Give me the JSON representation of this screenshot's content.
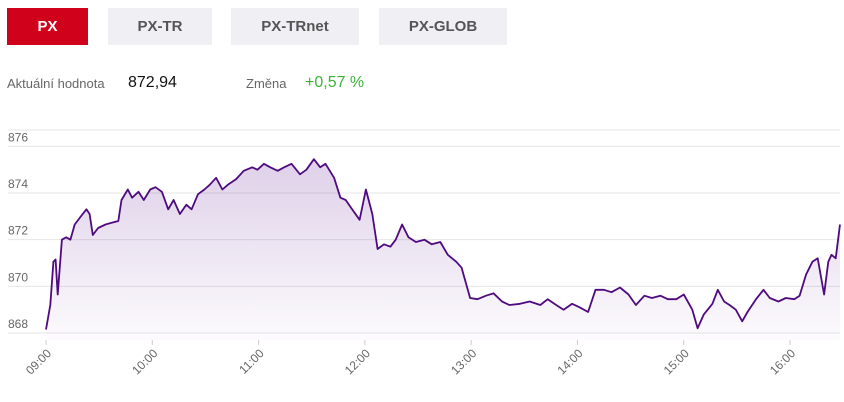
{
  "tabs": [
    "PX",
    "PX-TR",
    "PX-TRnet",
    "PX-GLOB"
  ],
  "active_tab": 0,
  "info": {
    "value_label": "Aktuální hodnota",
    "value": "872,94",
    "change_label": "Změna",
    "change": "+0,57 %"
  },
  "chart_data": {
    "type": "line",
    "xlim": [
      9,
      16.47
    ],
    "xticks": [
      {
        "value": 9,
        "label": "09:00"
      },
      {
        "value": 10,
        "label": "10:00"
      },
      {
        "value": 11,
        "label": "11:00"
      },
      {
        "value": 12,
        "label": "12:00"
      },
      {
        "value": 13,
        "label": "13:00"
      },
      {
        "value": 14,
        "label": "14:00"
      },
      {
        "value": 15,
        "label": "15:00"
      },
      {
        "value": 16,
        "label": "16:00"
      }
    ],
    "ylim": [
      867.7,
      876.7
    ],
    "yticks": [
      868,
      870,
      872,
      874,
      876
    ],
    "grid": true,
    "series": [
      {
        "color": "#4e0a7e",
        "x": [
          9.0,
          9.04,
          9.07,
          9.09,
          9.11,
          9.15,
          9.19,
          9.23,
          9.27,
          9.32,
          9.38,
          9.41,
          9.44,
          9.49,
          9.56,
          9.6,
          9.68,
          9.71,
          9.77,
          9.81,
          9.87,
          9.92,
          9.98,
          10.03,
          10.09,
          10.15,
          10.2,
          10.26,
          10.32,
          10.37,
          10.43,
          10.49,
          10.54,
          10.6,
          10.66,
          10.71,
          10.79,
          10.86,
          10.94,
          10.99,
          11.05,
          11.11,
          11.18,
          11.24,
          11.31,
          11.39,
          11.45,
          11.52,
          11.58,
          11.63,
          11.71,
          11.77,
          11.82,
          11.88,
          11.95,
          12.01,
          12.07,
          12.12,
          12.18,
          12.24,
          12.29,
          12.35,
          12.41,
          12.48,
          12.56,
          12.63,
          12.71,
          12.78,
          12.86,
          12.91,
          12.99,
          13.06,
          13.14,
          13.21,
          13.29,
          13.36,
          13.46,
          13.55,
          13.65,
          13.72,
          13.8,
          13.87,
          13.95,
          14.02,
          14.1,
          14.17,
          14.25,
          14.32,
          14.4,
          14.48,
          14.55,
          14.63,
          14.7,
          14.78,
          14.85,
          14.93,
          15.0,
          15.08,
          15.13,
          15.19,
          15.27,
          15.32,
          15.38,
          15.43,
          15.49,
          15.55,
          15.6,
          15.68,
          15.75,
          15.81,
          15.89,
          15.96,
          16.04,
          16.09,
          16.15,
          16.21,
          16.26,
          16.32,
          16.36,
          16.39,
          16.43,
          16.47
        ],
        "values": [
          868.15,
          869.2,
          871.05,
          871.15,
          869.65,
          872.0,
          872.1,
          872.0,
          872.65,
          872.95,
          873.3,
          873.1,
          872.2,
          872.5,
          872.65,
          872.7,
          872.8,
          873.7,
          874.15,
          873.8,
          874.05,
          873.7,
          874.15,
          874.25,
          874.05,
          873.3,
          873.7,
          873.1,
          873.5,
          873.3,
          873.95,
          874.15,
          874.35,
          874.65,
          874.15,
          874.35,
          874.6,
          874.95,
          875.1,
          875.0,
          875.25,
          875.1,
          874.95,
          875.1,
          875.25,
          874.8,
          875.0,
          875.45,
          875.1,
          875.25,
          874.65,
          873.8,
          873.7,
          873.3,
          872.85,
          874.15,
          873.1,
          871.6,
          871.8,
          871.7,
          872.0,
          872.65,
          872.1,
          871.9,
          872.0,
          871.8,
          871.9,
          871.35,
          871.05,
          870.8,
          869.5,
          869.45,
          869.6,
          869.7,
          869.35,
          869.2,
          869.25,
          869.35,
          869.2,
          869.45,
          869.2,
          869.0,
          869.25,
          869.1,
          868.9,
          869.85,
          869.85,
          869.75,
          869.95,
          869.65,
          869.2,
          869.6,
          869.5,
          869.6,
          869.45,
          869.45,
          869.65,
          869.0,
          868.2,
          868.8,
          869.25,
          869.85,
          869.35,
          869.2,
          869.0,
          868.5,
          868.9,
          869.45,
          869.85,
          869.5,
          869.35,
          869.5,
          869.45,
          869.6,
          870.5,
          871.05,
          871.2,
          869.65,
          871.05,
          871.35,
          871.2,
          872.65
        ]
      }
    ]
  }
}
